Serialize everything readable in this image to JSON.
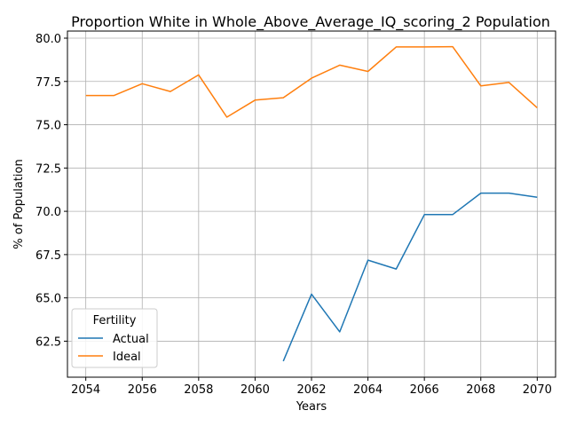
{
  "chart_data": {
    "type": "line",
    "title": "Proportion White in Whole_Above_Average_IQ_scoring_2 Population",
    "xlabel": "Years",
    "ylabel": "% of Population",
    "xlim": [
      2053.35,
      2070.65
    ],
    "ylim": [
      60.42,
      80.41
    ],
    "xticks": [
      2054,
      2056,
      2058,
      2060,
      2062,
      2064,
      2066,
      2068,
      2070
    ],
    "yticks": [
      62.5,
      65.0,
      67.5,
      70.0,
      72.5,
      75.0,
      77.5,
      80.0
    ],
    "ytick_labels": [
      "62.5",
      "65.0",
      "67.5",
      "70.0",
      "72.5",
      "75.0",
      "77.5",
      "80.0"
    ],
    "grid": true,
    "legend": {
      "title": "Fertility",
      "position": "lower-left"
    },
    "series": [
      {
        "name": "Actual",
        "color": "#1f77b4",
        "x": [
          2061,
          2062,
          2063,
          2064,
          2065,
          2066,
          2067,
          2068,
          2069,
          2070
        ],
        "y": [
          61.35,
          65.22,
          63.04,
          67.18,
          66.67,
          69.81,
          69.81,
          71.05,
          71.05,
          70.81
        ]
      },
      {
        "name": "Ideal",
        "color": "#ff7f0e",
        "x": [
          2054,
          2055,
          2056,
          2057,
          2058,
          2059,
          2060,
          2061,
          2062,
          2063,
          2064,
          2065,
          2066,
          2067,
          2068,
          2069,
          2070
        ],
        "y": [
          76.69,
          76.69,
          77.37,
          76.92,
          77.88,
          75.44,
          76.42,
          76.56,
          77.69,
          78.44,
          78.08,
          79.49,
          79.49,
          79.51,
          77.24,
          77.44,
          75.98
        ]
      }
    ]
  }
}
